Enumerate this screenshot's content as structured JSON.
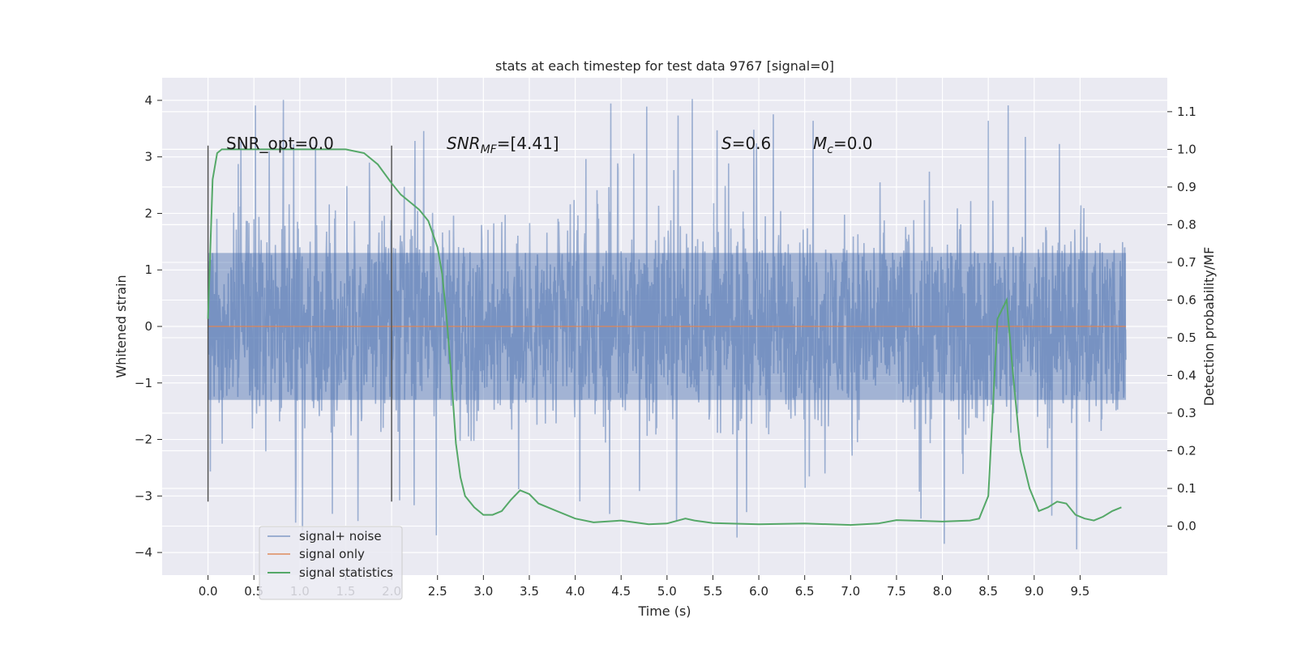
{
  "chart_data": {
    "type": "line",
    "title": "stats at each timestep for test data 9767 [signal=0]",
    "xlabel": "Time (s)",
    "ylabel_left": "Whitened strain",
    "ylabel_right": "Detection probability/MF",
    "xlim": [
      -0.5,
      10.45
    ],
    "ylim_left": [
      -4.4,
      4.4
    ],
    "ylim_right": [
      -0.13,
      1.19
    ],
    "x_ticks": [
      0.0,
      0.5,
      1.0,
      1.5,
      2.0,
      2.5,
      3.0,
      3.5,
      4.0,
      4.5,
      5.0,
      5.5,
      6.0,
      6.5,
      7.0,
      7.5,
      8.0,
      8.5,
      9.0,
      9.5
    ],
    "x_tick_labels": [
      "0.0",
      "0.5",
      "1.0",
      "1.5",
      "2.0",
      "2.5",
      "3.0",
      "3.5",
      "4.0",
      "4.5",
      "5.0",
      "5.5",
      "6.0",
      "6.5",
      "7.0",
      "7.5",
      "8.0",
      "8.5",
      "9.0",
      "9.5"
    ],
    "y_left_ticks": [
      -4,
      -3,
      -2,
      -1,
      0,
      1,
      2,
      3,
      4
    ],
    "y_left_tick_labels": [
      "−4",
      "−3",
      "−2",
      "−1",
      "0",
      "1",
      "2",
      "3",
      "4"
    ],
    "y_right_ticks": [
      0.0,
      0.1,
      0.2,
      0.3,
      0.4,
      0.5,
      0.6,
      0.7,
      0.8,
      0.9,
      1.0,
      1.1
    ],
    "y_right_tick_labels": [
      "0.0",
      "0.1",
      "0.2",
      "0.3",
      "0.4",
      "0.5",
      "0.6",
      "0.7",
      "0.8",
      "0.9",
      "1.0",
      "1.1"
    ],
    "grid": true,
    "legend_placement": "lower-left",
    "series": [
      {
        "name": "signal+ noise",
        "axis": "left",
        "color": "#4c72b0",
        "x_range": [
          0.0,
          10.0
        ],
        "band_core": [
          -1.3,
          1.3
        ],
        "envelope": [
          -2.5,
          2.7
        ],
        "extremes": [
          -4.0,
          4.05
        ]
      },
      {
        "name": "signal only",
        "axis": "left",
        "color": "#dd8452",
        "x": [
          0.0,
          10.0
        ],
        "y": [
          0.0,
          0.0
        ]
      },
      {
        "name": "signal statistics",
        "axis": "right",
        "color": "#55a868",
        "x": [
          0.0,
          0.05,
          0.1,
          0.15,
          0.25,
          0.4,
          0.6,
          1.0,
          1.5,
          1.7,
          1.85,
          2.0,
          2.1,
          2.2,
          2.3,
          2.4,
          2.5,
          2.55,
          2.6,
          2.65,
          2.7,
          2.75,
          2.8,
          2.9,
          3.0,
          3.1,
          3.2,
          3.3,
          3.4,
          3.5,
          3.6,
          3.8,
          4.0,
          4.2,
          4.5,
          4.8,
          5.0,
          5.2,
          5.3,
          5.5,
          6.0,
          6.5,
          7.0,
          7.3,
          7.5,
          8.0,
          8.3,
          8.4,
          8.5,
          8.6,
          8.7,
          8.77,
          8.85,
          8.95,
          9.05,
          9.15,
          9.25,
          9.35,
          9.45,
          9.55,
          9.65,
          9.75,
          9.85,
          9.95
        ],
        "y": [
          0.55,
          0.92,
          0.99,
          1.0,
          1.0,
          1.0,
          1.0,
          1.0,
          1.0,
          0.99,
          0.96,
          0.91,
          0.88,
          0.86,
          0.84,
          0.81,
          0.74,
          0.67,
          0.55,
          0.4,
          0.22,
          0.13,
          0.08,
          0.05,
          0.03,
          0.03,
          0.04,
          0.07,
          0.095,
          0.085,
          0.06,
          0.04,
          0.02,
          0.01,
          0.015,
          0.005,
          0.007,
          0.02,
          0.015,
          0.008,
          0.005,
          0.007,
          0.003,
          0.007,
          0.016,
          0.012,
          0.015,
          0.02,
          0.08,
          0.55,
          0.6,
          0.4,
          0.2,
          0.1,
          0.04,
          0.05,
          0.065,
          0.06,
          0.03,
          0.02,
          0.015,
          0.025,
          0.04,
          0.05
        ]
      }
    ],
    "vertical_lines": [
      {
        "x": 0.0,
        "y_range": [
          -3.1,
          3.2
        ],
        "color": "#555555"
      },
      {
        "x": 2.0,
        "y_range": [
          -3.1,
          3.2
        ],
        "color": "#555555"
      }
    ],
    "annotations": [
      {
        "text": "SNR_opt=0.0",
        "x": 0.2,
        "y": 3.15
      },
      {
        "text": "SNR_MF=[4.41]",
        "x": 2.6,
        "y": 3.15
      },
      {
        "text": "S=0.6",
        "x": 5.6,
        "y": 3.15
      },
      {
        "text": "M_c=0.0",
        "x": 6.6,
        "y": 3.15
      }
    ]
  }
}
